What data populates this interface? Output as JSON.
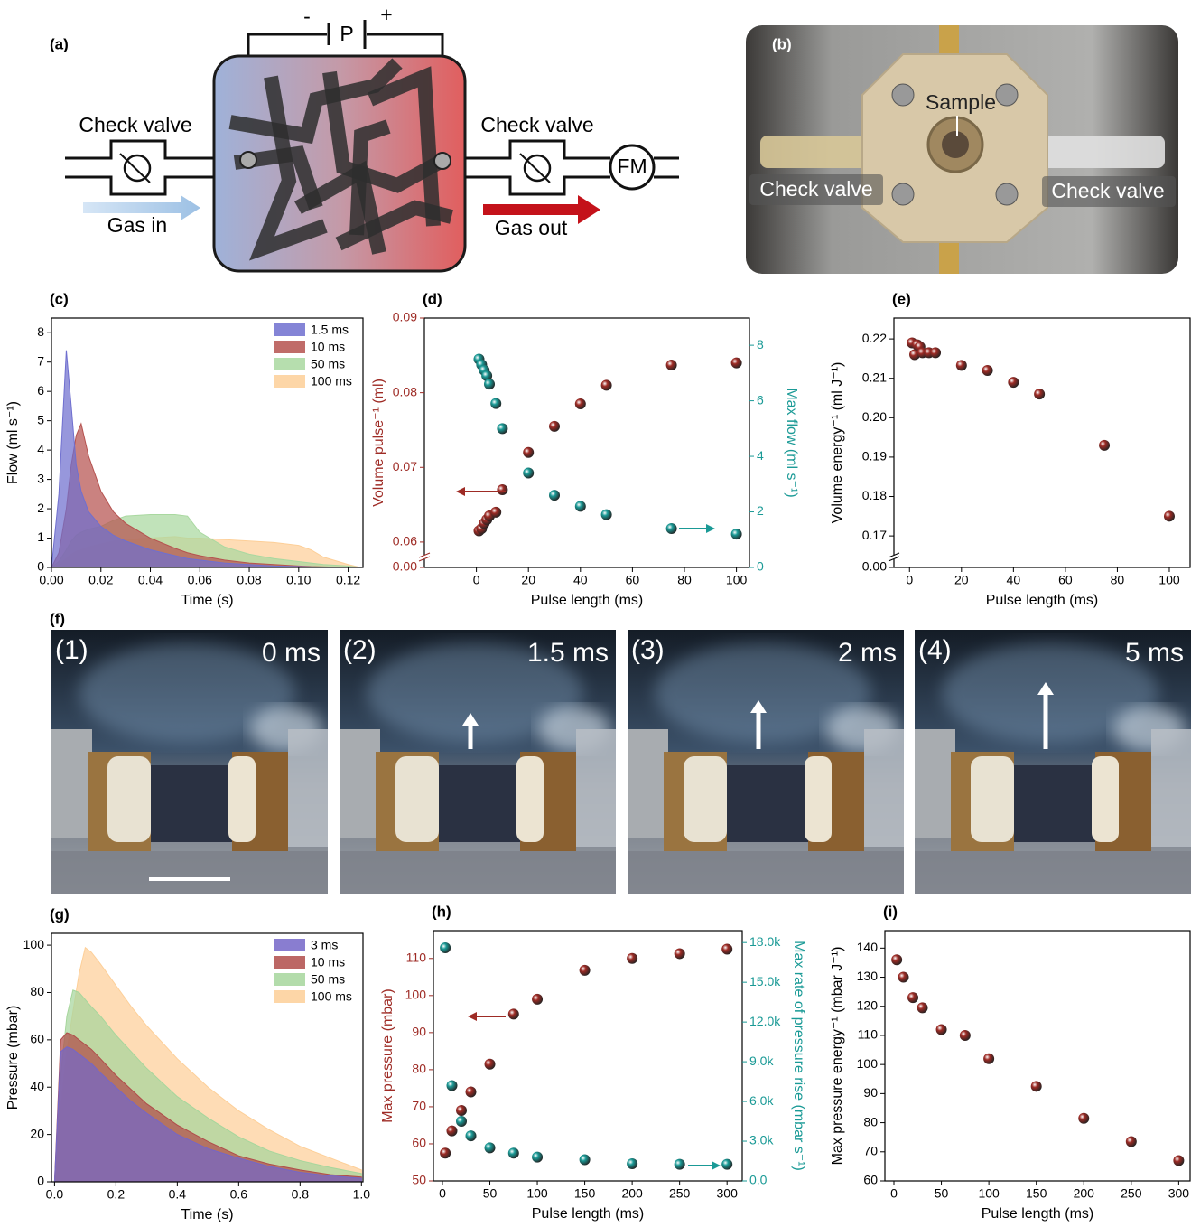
{
  "diagram": {
    "panel_label": "(a)",
    "source_label": "P",
    "minus": "-",
    "plus": "+",
    "inlet_valve": "Check valve",
    "outlet_valve": "Check valve",
    "inlet": "Gas in",
    "outlet": "Gas out",
    "meter": "FM"
  },
  "photo": {
    "panel_label": "(b)",
    "sample": "Sample",
    "left_valve": "Check valve",
    "right_valve": "Check valve"
  },
  "frames": {
    "panel_label": "(f)",
    "items": [
      {
        "index": "(1)",
        "time": "0 ms"
      },
      {
        "index": "(2)",
        "time": "1.5 ms"
      },
      {
        "index": "(3)",
        "time": "2 ms"
      },
      {
        "index": "(4)",
        "time": "5 ms"
      }
    ]
  },
  "chart_data": [
    {
      "type": "area",
      "panel_label": "(c)",
      "xlabel": "Time (s)",
      "ylabel": "Flow (ml s⁻¹)",
      "xlim": [
        0,
        0.126
      ],
      "xticks": [
        {
          "value": 0,
          "label": "0.00"
        },
        0.02,
        0.04,
        0.06,
        0.08,
        {
          "value": 0.1,
          "label": "0.10"
        },
        0.12
      ],
      "ylim": [
        0,
        8.5
      ],
      "yticks": [
        0,
        1,
        2,
        3,
        4,
        5,
        6,
        7,
        8
      ],
      "legend": "upper right",
      "x": [
        0,
        0.003,
        0.006,
        0.008,
        0.01,
        0.012,
        0.015,
        0.02,
        0.025,
        0.03,
        0.04,
        0.05,
        0.055,
        0.06,
        0.07,
        0.08,
        0.09,
        0.1,
        0.105,
        0.11,
        0.12,
        0.125
      ],
      "series": [
        {
          "name": "1.5 ms",
          "color": "#6f6fcf",
          "values": [
            0,
            2.5,
            7.4,
            5.5,
            3.5,
            2.6,
            1.9,
            1.4,
            1.1,
            0.9,
            0.6,
            0.4,
            0.3,
            0.25,
            0.15,
            0.1,
            0.05,
            0.03,
            0.02,
            0.01,
            0,
            0
          ]
        },
        {
          "name": "10 ms",
          "color": "#b5524f",
          "values": [
            0,
            0.5,
            2,
            3.5,
            4.5,
            4.9,
            3.8,
            2.6,
            1.9,
            1.5,
            1.0,
            0.65,
            0.5,
            0.4,
            0.25,
            0.15,
            0.1,
            0.05,
            0.03,
            0.02,
            0,
            0
          ]
        },
        {
          "name": "50 ms",
          "color": "#a9d8a0",
          "values": [
            0,
            0.2,
            0.6,
            0.9,
            1.1,
            1.2,
            1.3,
            1.4,
            1.6,
            1.75,
            1.8,
            1.8,
            1.75,
            1.2,
            0.7,
            0.45,
            0.3,
            0.2,
            0.15,
            0.1,
            0.05,
            0
          ]
        },
        {
          "name": "100 ms",
          "color": "#fdcf98",
          "values": [
            0,
            0.1,
            0.3,
            0.45,
            0.55,
            0.6,
            0.7,
            0.8,
            0.9,
            0.95,
            1.0,
            1.05,
            1.0,
            1.0,
            0.95,
            0.9,
            0.85,
            0.75,
            0.6,
            0.35,
            0.1,
            0
          ]
        }
      ]
    },
    {
      "type": "scatter",
      "panel_label": "(d)",
      "xlabel": "Pulse length (ms)",
      "ylabel": "Volume pulse⁻¹ (ml)",
      "y2label": "Max flow (ml s⁻¹)",
      "xlim": [
        -20,
        105
      ],
      "xticks": [
        0,
        20,
        40,
        60,
        80,
        100
      ],
      "ylim": [
        0.0566,
        0.09
      ],
      "yticks": [
        0.06,
        0.07,
        0.08,
        0.09
      ],
      "ybreak_tick": {
        "value": 0,
        "label": "0.00"
      },
      "y2lim": [
        0,
        8.98
      ],
      "y2ticks": [
        0,
        2,
        4,
        6,
        8
      ],
      "x": [
        1,
        2,
        3,
        4,
        5,
        7.5,
        10,
        20,
        30,
        40,
        50,
        75,
        100
      ],
      "series": [
        {
          "color": "#9e2b25",
          "values": [
            0.0615,
            0.0618,
            0.0625,
            0.063,
            0.0635,
            0.064,
            0.067,
            0.072,
            0.0755,
            0.0785,
            0.081,
            0.0837,
            0.084
          ]
        },
        {
          "color": "#1a9a96",
          "axis": "y2",
          "values": [
            7.5,
            7.3,
            7.1,
            6.9,
            6.6,
            5.9,
            5.0,
            3.4,
            2.6,
            2.2,
            1.9,
            1.4,
            1.2
          ]
        }
      ]
    },
    {
      "type": "scatter",
      "panel_label": "(e)",
      "xlabel": "Pulse length (ms)",
      "ylabel": "Volume energy⁻¹ (ml J⁻¹)",
      "xlim": [
        -6,
        108
      ],
      "xticks": [
        0,
        20,
        40,
        60,
        80,
        100
      ],
      "ylim": [
        0.162,
        0.2253
      ],
      "yticks": [
        0.17,
        0.18,
        0.19,
        {
          "value": 0.2,
          "label": "0.20"
        },
        0.21,
        0.22
      ],
      "ybreak_tick": {
        "value": 0,
        "label": "0.00"
      },
      "x": [
        1,
        2,
        3,
        4,
        5,
        7.5,
        10,
        20,
        30,
        40,
        50,
        75,
        100
      ],
      "series": [
        {
          "color": "#9e2b25",
          "values": [
            0.219,
            0.216,
            0.2185,
            0.218,
            0.2165,
            0.2165,
            0.2165,
            0.2133,
            0.212,
            0.209,
            0.206,
            0.193,
            0.175
          ]
        }
      ]
    },
    {
      "type": "area",
      "panel_label": "(g)",
      "xlabel": "Time (s)",
      "ylabel": "Pressure (mbar)",
      "xlim": [
        -0.01,
        1.005
      ],
      "xticks": [
        {
          "value": 0,
          "label": "0.0"
        },
        0.2,
        0.4,
        0.6,
        0.8,
        {
          "value": 1,
          "label": "1.0"
        }
      ],
      "ylim": [
        0,
        105
      ],
      "yticks": [
        0,
        20,
        40,
        60,
        80,
        100
      ],
      "legend": "upper right",
      "x": [
        0,
        0.02,
        0.04,
        0.06,
        0.08,
        0.1,
        0.12,
        0.15,
        0.2,
        0.25,
        0.3,
        0.4,
        0.5,
        0.6,
        0.7,
        0.8,
        0.9,
        1.0
      ],
      "series": [
        {
          "name": "3 ms",
          "color": "#7466c8",
          "values": [
            0,
            55,
            57,
            56,
            54,
            52,
            50,
            46,
            40,
            34,
            29,
            20,
            14,
            10,
            6.5,
            4,
            2.5,
            1.5
          ]
        },
        {
          "name": "10 ms",
          "color": "#b04c4a",
          "values": [
            0,
            60,
            63,
            62,
            60,
            58,
            56,
            52,
            45,
            39,
            33,
            24,
            17,
            11,
            7.5,
            5,
            3,
            2
          ]
        },
        {
          "name": "50 ms",
          "color": "#a6d69c",
          "values": [
            0,
            45,
            70,
            81,
            80,
            77,
            74,
            70,
            62,
            55,
            48,
            36,
            27,
            19,
            13,
            9,
            6,
            3.5
          ]
        },
        {
          "name": "100 ms",
          "color": "#fdcf98",
          "values": [
            0,
            30,
            55,
            72,
            88,
            99,
            97,
            92,
            83,
            74,
            66,
            52,
            40,
            30,
            22,
            15,
            10,
            5
          ]
        }
      ]
    },
    {
      "type": "scatter",
      "panel_label": "(h)",
      "xlabel": "Pulse length (ms)",
      "ylabel": "Max pressure (mbar)",
      "y2label": "Max rate of pressure rise (mbar s⁻¹)",
      "xlim": [
        -9.5,
        316
      ],
      "xticks": [
        0,
        50,
        100,
        150,
        200,
        250,
        300
      ],
      "ylim": [
        50,
        117.5
      ],
      "yticks": [
        50,
        60,
        70,
        80,
        90,
        100,
        110
      ],
      "y2lim": [
        0,
        18900
      ],
      "y2ticks": [
        {
          "value": 0,
          "label": "0.0"
        },
        {
          "value": 3000,
          "label": "3.0k"
        },
        {
          "value": 6000,
          "label": "6.0k"
        },
        {
          "value": 9000,
          "label": "9.0k"
        },
        {
          "value": 12000,
          "label": "12.0k"
        },
        {
          "value": 15000,
          "label": "15.0k"
        },
        {
          "value": 18000,
          "label": "18.0k"
        }
      ],
      "x": [
        3,
        10,
        20,
        30,
        50,
        75,
        100,
        150,
        200,
        250,
        300
      ],
      "series": [
        {
          "color": "#9e2b25",
          "values": [
            57.5,
            63.5,
            69,
            74,
            81.5,
            95,
            99,
            106.8,
            110,
            111.3,
            112.5
          ]
        },
        {
          "color": "#1a9a96",
          "axis": "y2",
          "values": [
            17600,
            7200,
            4500,
            3400,
            2500,
            2100,
            1800,
            1600,
            1300,
            1250,
            1250
          ]
        }
      ]
    },
    {
      "type": "scatter",
      "panel_label": "(i)",
      "xlabel": "Pulse length (ms)",
      "ylabel": "Max pressure energy⁻¹ (mbar J⁻¹)",
      "xlim": [
        -9.5,
        312
      ],
      "xticks": [
        0,
        50,
        100,
        150,
        200,
        250,
        300
      ],
      "ylim": [
        60,
        146
      ],
      "yticks": [
        60,
        70,
        80,
        90,
        100,
        110,
        120,
        130,
        140
      ],
      "x": [
        3,
        10,
        20,
        30,
        50,
        75,
        100,
        150,
        200,
        250,
        300
      ],
      "series": [
        {
          "color": "#9e2b25",
          "values": [
            136,
            130,
            123,
            119.5,
            112,
            110,
            102,
            92.5,
            81.5,
            73.5,
            67
          ]
        }
      ]
    }
  ]
}
